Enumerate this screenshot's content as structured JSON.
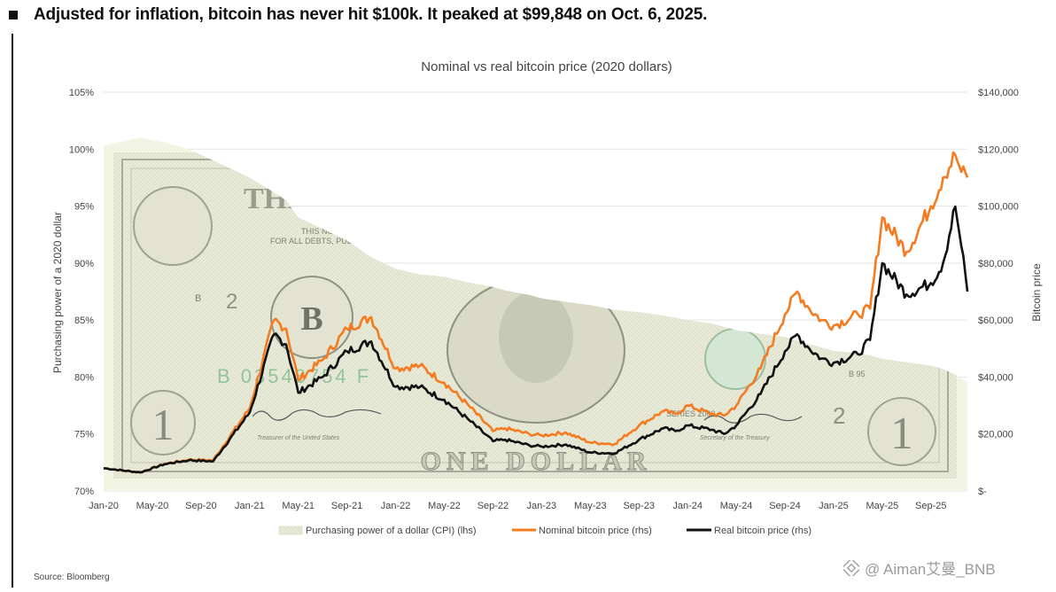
{
  "headline": "Adjusted for inflation, bitcoin has never hit $100k. It peaked at $99,848 on Oct. 6, 2025.",
  "source": "Source: Bloomberg",
  "watermark": "@ Aiman艾曼_BNB",
  "dollar_bill": {
    "texts": [
      "THE",
      "THIS NOTE IS LEGAL",
      "FOR ALL DEBTS, PUBLIC AND",
      "B",
      "2",
      "B 03543754 F",
      "ONE DOLLAR",
      "SERIES 2009",
      "2",
      "1",
      "1",
      "B 95",
      "Treasurer of the United States",
      "Secretary of the Treasury"
    ]
  },
  "chart_data": {
    "type": "line",
    "title": "Nominal vs real bitcoin price (2020 dollars)",
    "ylabel_left": "Purchasing power of a 2020 dollar",
    "ylabel_right": "Bitcoin price",
    "ylim_left": [
      70,
      105
    ],
    "ylim_right": [
      0,
      140000
    ],
    "left_ticks": [
      "70%",
      "75%",
      "80%",
      "85%",
      "90%",
      "95%",
      "100%",
      "105%"
    ],
    "right_ticks": [
      "$-",
      "$20,000",
      "$40,000",
      "$60,000",
      "$80,000",
      "$100,000",
      "$120,000",
      "$140,000"
    ],
    "x_tick_labels": [
      "Jan-20",
      "May-20",
      "Sep-20",
      "Jan-21",
      "May-21",
      "Sep-21",
      "Jan-22",
      "May-22",
      "Sep-22",
      "Jan-23",
      "May-23",
      "Sep-23",
      "Jan-24",
      "May-24",
      "Sep-24",
      "Jan-25",
      "May-25",
      "Sep-25"
    ],
    "x_months": [
      0,
      3,
      5,
      7,
      9,
      12,
      14,
      15,
      16,
      18,
      20,
      22,
      24,
      26,
      28,
      30,
      32,
      33,
      35,
      36,
      38,
      40,
      42,
      44,
      46,
      47,
      48,
      50,
      51,
      52,
      54,
      56,
      57,
      58,
      59,
      60,
      62,
      63,
      64,
      66,
      68,
      69,
      70,
      70.5,
      71
    ],
    "series": [
      {
        "name": "Purchasing power of a dollar (CPI) (lhs)",
        "axis": "left",
        "color": "#f1f3e2",
        "values": [
          100.3,
          101,
          100.6,
          100,
          99,
          97.5,
          96.2,
          95.5,
          94,
          93,
          92,
          90.5,
          89.5,
          89,
          88.8,
          88.3,
          87.9,
          87.6,
          87.2,
          86.9,
          86.6,
          86.3,
          85.9,
          85.7,
          85.4,
          85.2,
          85,
          84.7,
          84.4,
          84.1,
          83.8,
          83.5,
          83.2,
          82.9,
          82.6,
          82.3,
          82.1,
          81.9,
          81.6,
          81.3,
          81,
          80.7,
          80.2,
          79.9,
          79.6
        ]
      },
      {
        "name": "Nominal bitcoin price (rhs)",
        "axis": "right",
        "color": "#f47b20",
        "values": [
          8000,
          6500,
          9500,
          11000,
          10800,
          29000,
          60000,
          57000,
          39000,
          46000,
          57000,
          61000,
          43000,
          44000,
          38000,
          30000,
          21000,
          22000,
          20000,
          19500,
          20500,
          17000,
          16500,
          23000,
          28000,
          27000,
          30000,
          27000,
          26500,
          30000,
          43000,
          62000,
          70000,
          64000,
          60000,
          58000,
          62000,
          64000,
          96000,
          84000,
          100000,
          110000,
          118000,
          112000,
          110000
        ]
      },
      {
        "name": "Real bitcoin price (rhs)",
        "axis": "right",
        "color": "#111111",
        "values": [
          8000,
          6500,
          9400,
          10800,
          10400,
          27500,
          55000,
          51500,
          34500,
          40000,
          49000,
          52500,
          36600,
          36500,
          32000,
          25000,
          17500,
          18000,
          16000,
          15600,
          16300,
          13500,
          13200,
          18000,
          22000,
          21000,
          23000,
          21500,
          20000,
          23000,
          34000,
          49000,
          55000,
          50000,
          46500,
          45000,
          48000,
          53000,
          80000,
          69000,
          73000,
          80000,
          99848,
          86000,
          70000
        ]
      }
    ]
  }
}
